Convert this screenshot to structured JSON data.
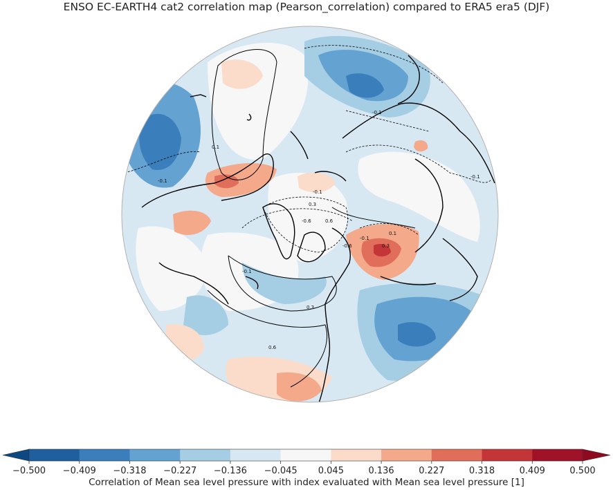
{
  "title": "ENSO EC-EARTH4 cat2 correlation map (Pearson_correlation) compared to ERA5 era5 (DJF)",
  "projection": "north polar stereographic",
  "colorbar": {
    "label": "Correlation of Mean sea level pressure with index evaluated with Mean sea level pressure [1]",
    "ticks": [
      "−0.500",
      "−0.409",
      "−0.318",
      "−0.227",
      "−0.136",
      "−0.045",
      "0.045",
      "0.136",
      "0.227",
      "0.318",
      "0.409",
      "0.500"
    ],
    "colors": [
      "#1f5fa0",
      "#3a7fbc",
      "#63a2d1",
      "#a5cde3",
      "#d8e8f3",
      "#f7f7f7",
      "#fbdccb",
      "#f4a98b",
      "#e06e5b",
      "#c33537",
      "#a01228"
    ],
    "extend_low_color": "#0c4882",
    "extend_high_color": "#8f0a20"
  },
  "contour_labels": {
    "l1": "0.1",
    "l2": "-0.1",
    "l3": "-0.1",
    "l4": "-0.1",
    "l5": "-0.1",
    "l6": "0.3",
    "l7": "-0.6",
    "l8": "0.6",
    "l9": "0.1",
    "l10": "0.3",
    "l11": "-0.6",
    "l12": "-0.1",
    "l13": "0.3",
    "l14": "0.6",
    "l15": "-0.1"
  },
  "colors": {
    "background": "#ffffff",
    "land_outline": "#000000",
    "globe_edge": "#b0b0b0"
  }
}
